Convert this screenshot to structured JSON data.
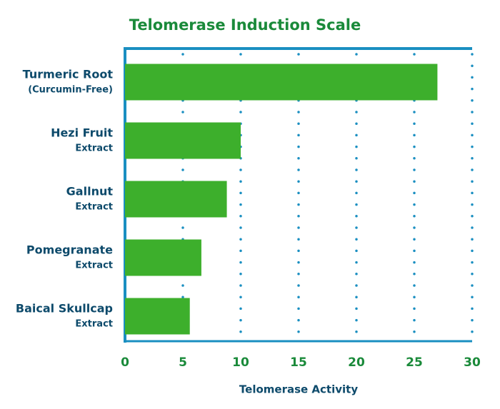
{
  "chart_data": {
    "type": "barh",
    "title": "Telomerase Induction Scale",
    "categories": [
      [
        "Turmeric Root",
        "(Curcumin-Free)"
      ],
      [
        "Hezi Fruit",
        "Extract"
      ],
      [
        "Gallnut",
        "Extract"
      ],
      [
        "Pomegranate",
        "Extract"
      ],
      [
        "Baical Skullcap",
        "Extract"
      ]
    ],
    "values": [
      27,
      10,
      8.8,
      6.6,
      5.6
    ],
    "color": "#3daf2c",
    "x_label": "Telomerase Activity",
    "xlim": [
      0,
      30
    ],
    "xticks": [
      0,
      5,
      10,
      15,
      20,
      25,
      30
    ],
    "grid": true
  }
}
